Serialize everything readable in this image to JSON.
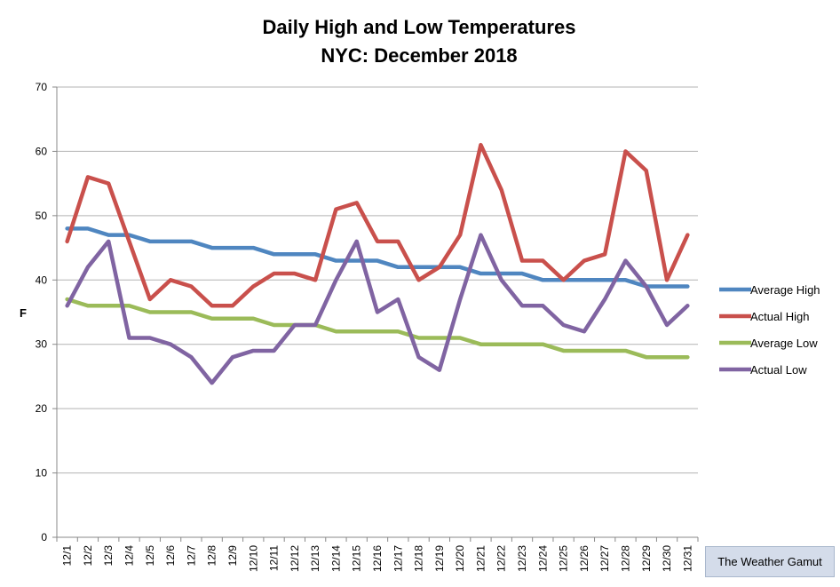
{
  "chart_data": {
    "type": "line",
    "title": "Daily High and Low Temperatures",
    "subtitle": "NYC: December 2018",
    "xlabel": "",
    "ylabel": "F",
    "ylim": [
      0,
      70
    ],
    "yticks": [
      0,
      10,
      20,
      30,
      40,
      50,
      60,
      70
    ],
    "grid": true,
    "legend_position": "right",
    "categories": [
      "12/1",
      "12/2",
      "12/3",
      "12/4",
      "12/5",
      "12/6",
      "12/7",
      "12/8",
      "12/9",
      "12/10",
      "12/11",
      "12/12",
      "12/13",
      "12/14",
      "12/15",
      "12/16",
      "12/17",
      "12/18",
      "12/19",
      "12/20",
      "12/21",
      "12/22",
      "12/23",
      "12/24",
      "12/25",
      "12/26",
      "12/27",
      "12/28",
      "12/29",
      "12/30",
      "12/31"
    ],
    "series": [
      {
        "name": "Average High",
        "color": "#4f86c0",
        "values": [
          48,
          48,
          47,
          47,
          46,
          46,
          46,
          45,
          45,
          45,
          44,
          44,
          44,
          43,
          43,
          43,
          42,
          42,
          42,
          42,
          41,
          41,
          41,
          40,
          40,
          40,
          40,
          40,
          39,
          39,
          39
        ]
      },
      {
        "name": "Actual High",
        "color": "#c9504c",
        "values": [
          46,
          56,
          55,
          46,
          37,
          40,
          39,
          36,
          36,
          39,
          41,
          41,
          40,
          51,
          52,
          46,
          46,
          40,
          42,
          47,
          61,
          54,
          43,
          43,
          40,
          43,
          44,
          60,
          57,
          40,
          47
        ]
      },
      {
        "name": "Average Low",
        "color": "#9bbb59",
        "values": [
          37,
          36,
          36,
          36,
          35,
          35,
          35,
          34,
          34,
          34,
          33,
          33,
          33,
          32,
          32,
          32,
          32,
          31,
          31,
          31,
          30,
          30,
          30,
          30,
          29,
          29,
          29,
          29,
          28,
          28,
          28
        ]
      },
      {
        "name": "Actual Low",
        "color": "#8064a2",
        "values": [
          36,
          42,
          46,
          31,
          31,
          30,
          28,
          24,
          28,
          29,
          29,
          33,
          33,
          40,
          46,
          35,
          37,
          28,
          26,
          37,
          47,
          40,
          36,
          36,
          33,
          32,
          37,
          43,
          39,
          33,
          36
        ]
      }
    ]
  },
  "badge": {
    "label": "The Weather Gamut"
  }
}
